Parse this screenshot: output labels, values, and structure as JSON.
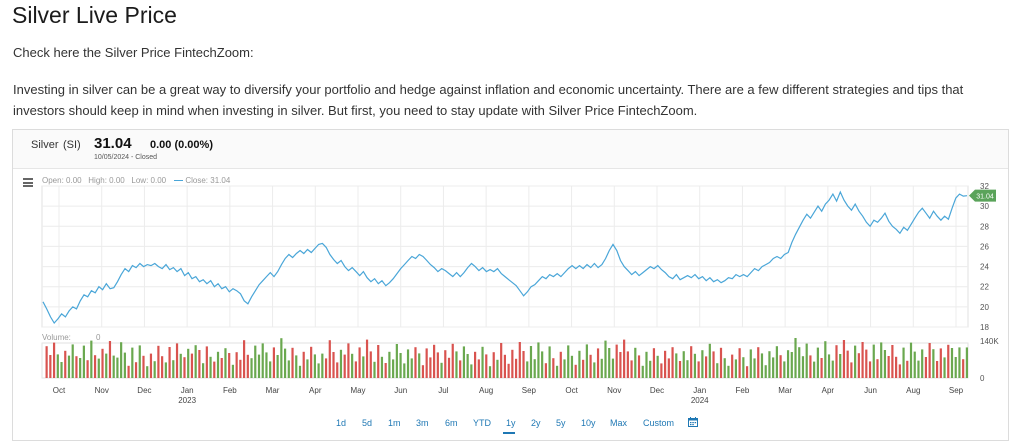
{
  "page": {
    "title": "Silver Live Price",
    "intro": "Check here the Silver Price FintechZoom:",
    "paragraph": "Investing in silver can be a great way to diversify your portfolio and hedge against inflation and economic uncertainty. There are a few different strategies and tips that investors should keep in mind when investing in silver. But first, you need to stay update with Silver Price FintechZoom."
  },
  "quote": {
    "name": "Silver",
    "symbol": "(SI)",
    "price": "31.04",
    "change": "0.00 (0.00%)",
    "date_status": "10/05/2024  -  Closed"
  },
  "ohlc": {
    "open": "Open:  0.00",
    "high": "High:  0.00",
    "low": "Low:  0.00",
    "close": "Close: 31.04"
  },
  "volume": {
    "label": "Volume:",
    "value": "0"
  },
  "ranges": [
    "1d",
    "5d",
    "1m",
    "3m",
    "6m",
    "YTD",
    "1y",
    "2y",
    "5y",
    "10y",
    "Max",
    "Custom"
  ],
  "active_range": "1y",
  "colors": {
    "line": "#4aa6d8",
    "vol_up": "#6aa84f",
    "vol_down": "#d9534f",
    "last_tag": "#5aa35a",
    "grid": "#ececec"
  },
  "icons": {
    "menu": "hamburger-menu-icon",
    "calendar": "calendar-icon"
  },
  "chart_data": {
    "type": "line",
    "title": "",
    "xlabel": "",
    "ylabel": "",
    "ylim": [
      18,
      32
    ],
    "yticks": [
      "18",
      "20",
      "22",
      "24",
      "26",
      "28",
      "30",
      "32"
    ],
    "xticks": [
      "Oct",
      "Nov",
      "Dec",
      "Jan",
      "Feb",
      "Mar",
      "Apr",
      "May",
      "Jun",
      "Jul",
      "Aug",
      "Sep",
      "Oct",
      "Nov",
      "Dec",
      "Jan",
      "Feb",
      "Mar",
      "Apr",
      "Jun",
      "Aug",
      "Sep"
    ],
    "year_labels": [
      "2023",
      "2024"
    ],
    "last_value_tag": "31.04",
    "volume_axis": [
      "140K",
      "0"
    ],
    "grid": true,
    "series": [
      {
        "values": [
          20.5,
          19.8,
          19.0,
          18.4,
          18.8,
          19.3,
          19.0,
          19.6,
          20.0,
          19.8,
          20.6,
          21.2,
          21.0,
          21.6,
          21.4,
          22.0,
          21.7,
          22.3,
          21.8,
          21.9,
          22.5,
          23.2,
          23.8,
          23.5,
          24.1,
          23.9,
          24.3,
          24.0,
          24.2,
          24.1,
          24.3,
          24.0,
          23.8,
          24.2,
          23.7,
          23.9,
          23.5,
          23.8,
          23.1,
          23.4,
          22.8,
          23.0,
          22.5,
          22.7,
          22.3,
          22.6,
          22.0,
          22.3,
          21.8,
          22.0,
          21.5,
          21.8,
          21.6,
          21.3,
          20.6,
          20.3,
          21.0,
          21.6,
          22.2,
          22.6,
          23.0,
          23.4,
          23.0,
          23.5,
          24.2,
          24.8,
          25.2,
          24.9,
          25.3,
          25.6,
          25.3,
          25.7,
          25.4,
          25.8,
          26.2,
          26.3,
          25.9,
          25.2,
          24.7,
          24.3,
          24.6,
          24.0,
          23.6,
          23.9,
          23.5,
          23.1,
          23.5,
          22.9,
          22.5,
          22.8,
          22.3,
          22.6,
          22.1,
          22.4,
          22.8,
          23.3,
          23.8,
          24.2,
          24.6,
          25.0,
          24.8,
          25.2,
          25.0,
          24.6,
          24.2,
          23.9,
          23.5,
          23.8,
          23.6,
          23.3,
          23.0,
          23.4,
          23.0,
          23.4,
          23.9,
          24.3,
          24.0,
          23.6,
          23.9,
          23.5,
          23.7,
          23.5,
          23.8,
          23.3,
          23.0,
          22.7,
          22.4,
          22.1,
          21.6,
          21.1,
          21.5,
          22.0,
          22.2,
          22.6,
          23.0,
          22.8,
          23.2,
          23.0,
          23.3,
          23.0,
          23.4,
          23.8,
          24.1,
          23.8,
          24.1,
          23.8,
          24.2,
          23.9,
          24.3,
          23.9,
          24.2,
          24.8,
          25.6,
          26.2,
          25.6,
          24.6,
          24.0,
          23.6,
          23.2,
          23.5,
          23.1,
          23.4,
          23.7,
          24.0,
          23.8,
          24.1,
          23.7,
          23.4,
          23.0,
          22.8,
          23.2,
          22.7,
          22.9,
          23.1,
          22.9,
          23.2,
          22.8,
          23.0,
          22.6,
          22.9,
          22.5,
          22.7,
          22.4,
          22.6,
          22.9,
          22.8,
          23.2,
          23.0,
          23.2,
          23.0,
          23.4,
          23.8,
          23.6,
          24.0,
          24.2,
          24.4,
          24.8,
          25.0,
          24.8,
          25.2,
          25.4,
          26.4,
          27.2,
          27.9,
          28.6,
          29.2,
          28.8,
          29.4,
          30.0,
          29.5,
          30.2,
          30.6,
          31.2,
          30.5,
          31.4,
          30.6,
          30.0,
          29.6,
          30.2,
          29.5,
          29.0,
          28.4,
          28.0,
          28.6,
          28.4,
          28.8,
          29.3,
          28.5,
          28.0,
          27.7,
          27.3,
          27.9,
          27.6,
          28.2,
          28.8,
          29.4,
          29.8,
          29.3,
          28.8,
          29.5,
          29.0,
          28.6,
          29.0,
          28.7,
          29.8,
          30.8,
          31.2,
          31.0,
          31.04
        ]
      }
    ]
  }
}
